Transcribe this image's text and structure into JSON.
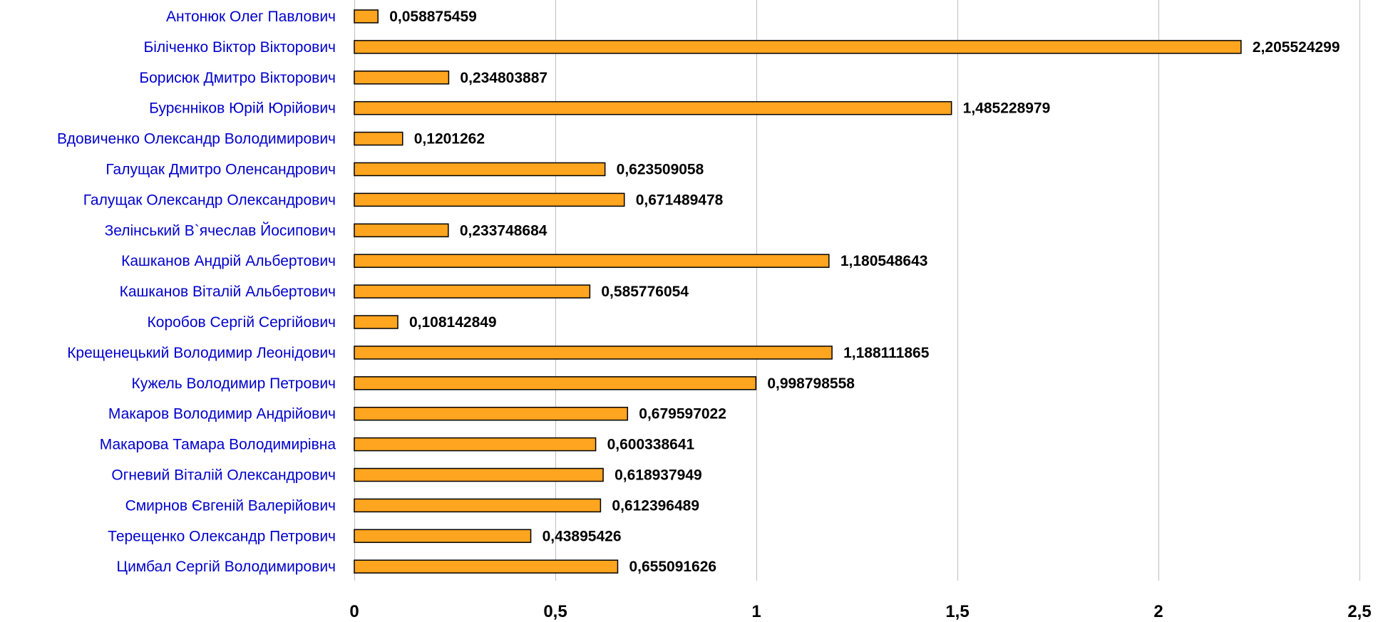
{
  "chart_data": {
    "type": "bar",
    "orientation": "horizontal",
    "categories": [
      "Антонюк Олег Павлович",
      "Біліченко Віктор Вікторович",
      "Борисюк Дмитро Вікторович",
      "Бурєнніков Юрій Юрійович",
      "Вдовиченко Олександр Володимирович",
      "Галущак Дмитро Оленсандрович",
      "Галущак Олександр Олександрович",
      "Зелінський В`ячеслав Йосипович",
      "Кашканов Андрій Альбертович",
      "Кашканов Віталій Альбертович",
      "Коробов Сергій Сергійович",
      "Крещенецький Володимир Леонідович",
      "Кужель Володимир Петрович",
      "Макаров Володимир Андрійович",
      "Макарова Тамара Володимирівна",
      "Огневий Віталій Олександрович",
      "Смирнов Євгеній Валерійович",
      "Терещенко Олександр Петрович",
      "Цимбал Сергій Володимирович"
    ],
    "values": [
      0.058875459,
      2.205524299,
      0.234803887,
      1.485228979,
      0.1201262,
      0.623509058,
      0.671489478,
      0.233748684,
      1.180548643,
      0.585776054,
      0.108142849,
      1.188111865,
      0.998798558,
      0.679597022,
      0.600338641,
      0.618937949,
      0.612396489,
      0.43895426,
      0.655091626
    ],
    "value_labels": [
      "0,058875459",
      "2,205524299",
      "0,234803887",
      "1,485228979",
      "0,1201262",
      "0,623509058",
      "0,671489478",
      "0,233748684",
      "1,180548643",
      "0,585776054",
      "0,108142849",
      "1,188111865",
      "0,998798558",
      "0,679597022",
      "0,600338641",
      "0,618937949",
      "0,612396489",
      "0,43895426",
      "0,655091626"
    ],
    "x_ticks": [
      0,
      0.5,
      1,
      1.5,
      2,
      2.5
    ],
    "x_tick_labels": [
      "0",
      "0,5",
      "1",
      "1,5",
      "2",
      "2,5"
    ],
    "xlim": [
      0,
      2.5
    ],
    "title": "",
    "xlabel": "",
    "ylabel": "",
    "grid": "vertical",
    "legend": "none",
    "bar_color": "#ffa51f",
    "bar_edge_color": "#000000",
    "category_label_color": "#0000cc",
    "grid_color": "#bfbfbf"
  }
}
